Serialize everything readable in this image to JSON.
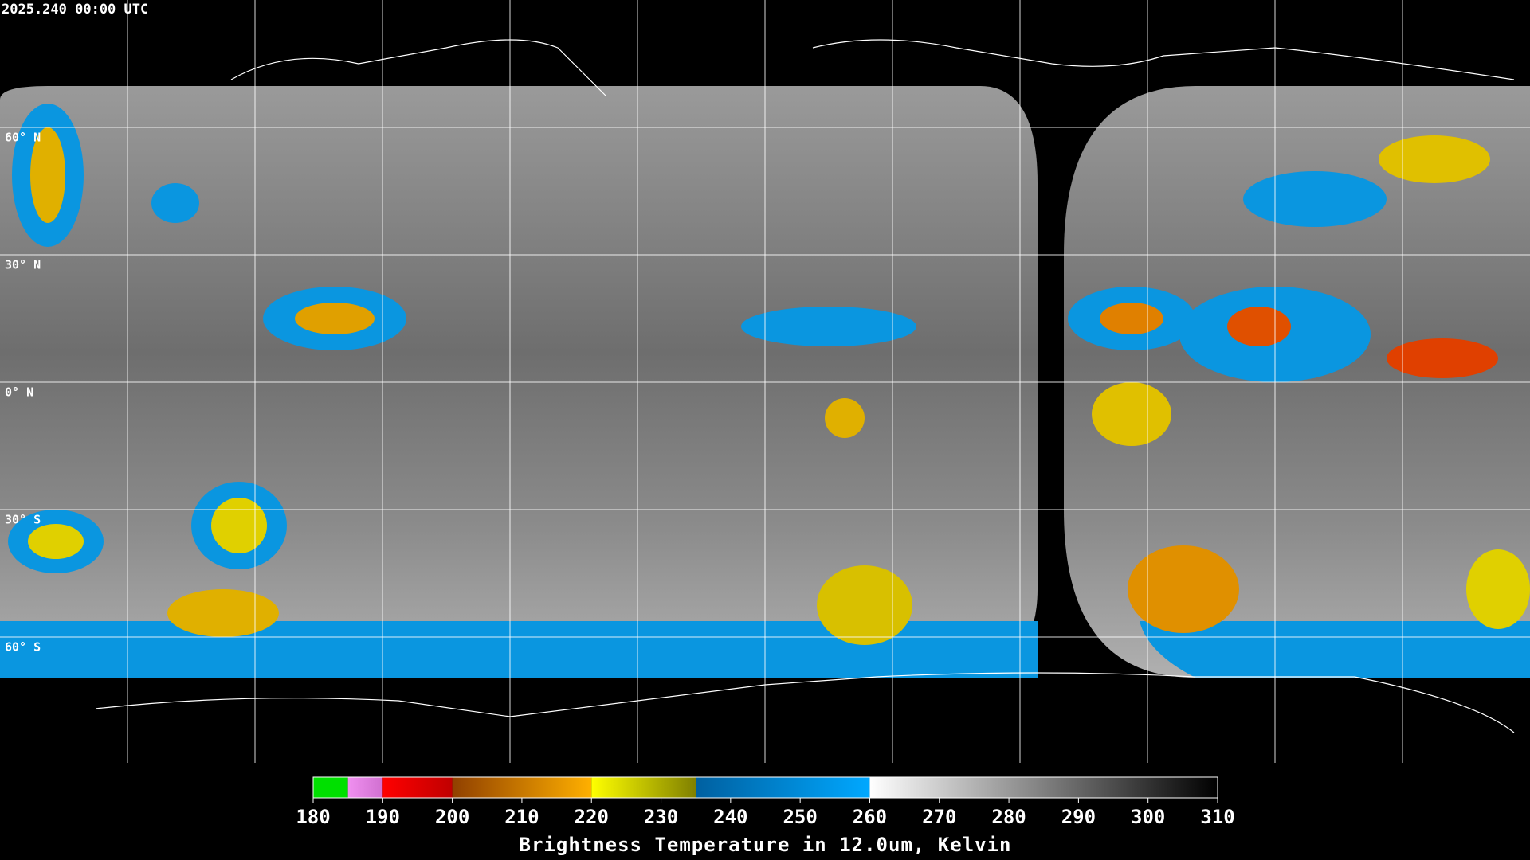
{
  "header": {
    "timestamp": "2025.240 00:00 UTC"
  },
  "map": {
    "lat_labels": [
      {
        "value": 60,
        "label": "60° N"
      },
      {
        "value": 30,
        "label": "30° N"
      },
      {
        "value": 0,
        "label": "0° N"
      },
      {
        "value": -30,
        "label": "30° S"
      },
      {
        "value": -60,
        "label": "60° S"
      }
    ]
  },
  "colorbar": {
    "range": [
      180,
      310
    ],
    "ticks": [
      180,
      190,
      200,
      210,
      220,
      230,
      240,
      250,
      260,
      270,
      280,
      290,
      300,
      310
    ],
    "segments": [
      {
        "from": 180,
        "to": 185,
        "color": "#00e000",
        "color_end": "#00e000"
      },
      {
        "from": 185,
        "to": 190,
        "color": "#f090f0",
        "color_end": "#d070d0"
      },
      {
        "from": 190,
        "to": 200,
        "color": "#ff0000",
        "color_end": "#c00000"
      },
      {
        "from": 200,
        "to": 220,
        "color": "#904000",
        "color_end": "#ffb000"
      },
      {
        "from": 220,
        "to": 235,
        "color": "#ffff00",
        "color_end": "#808000"
      },
      {
        "from": 235,
        "to": 260,
        "color": "#0060a0",
        "color_end": "#00a8ff"
      },
      {
        "from": 260,
        "to": 310,
        "color": "#ffffff",
        "color_end": "#000000"
      }
    ],
    "label": "Brightness Temperature in 12.0um, Kelvin"
  }
}
